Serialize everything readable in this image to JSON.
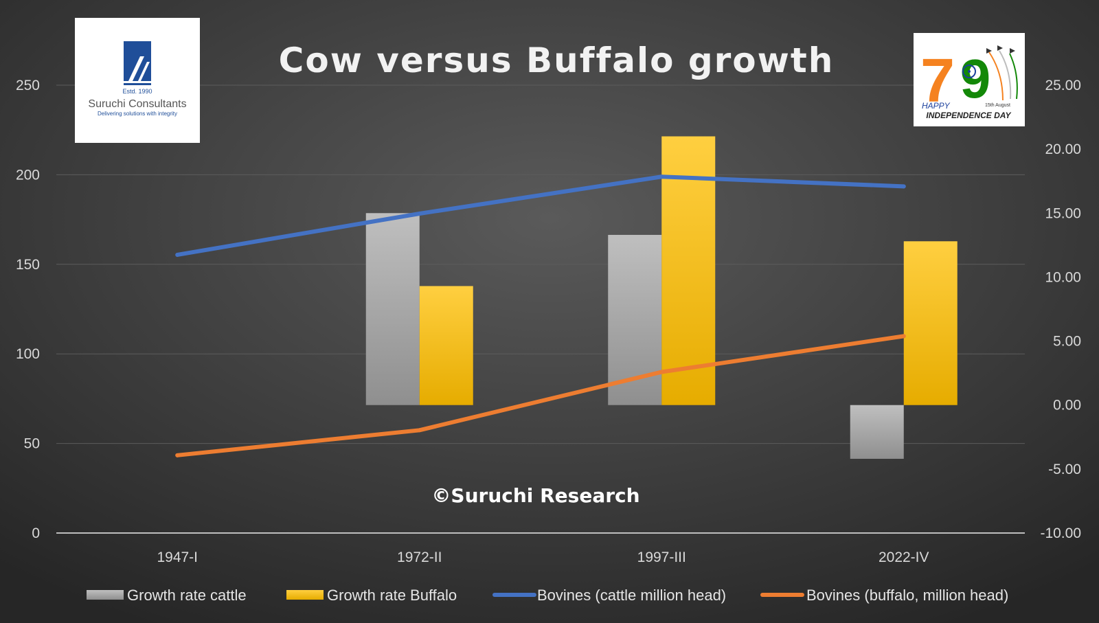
{
  "chart_data": {
    "type": "bar+line",
    "title": "Cow versus Buffalo growth",
    "watermark": "©Suruchi Research",
    "categories": [
      "1947-I",
      "1972-II",
      "1997-III",
      "2022-IV"
    ],
    "left_axis": {
      "min": 0,
      "max": 250,
      "step": 50,
      "ticks": [
        "0",
        "50",
        "100",
        "150",
        "200",
        "250"
      ]
    },
    "right_axis": {
      "min": -10,
      "max": 25,
      "step": 5,
      "ticks": [
        "-10.00",
        "-5.00",
        "0.00",
        "5.00",
        "10.00",
        "15.00",
        "20.00",
        "25.00"
      ]
    },
    "series": [
      {
        "name": "Growth rate cattle",
        "kind": "bar",
        "axis": "right",
        "color": "#a6a6a6",
        "values": [
          null,
          15.0,
          13.3,
          -4.2
        ]
      },
      {
        "name": "Growth rate Buffalo",
        "kind": "bar",
        "axis": "right",
        "color": "#ffc000",
        "values": [
          null,
          9.3,
          21.0,
          12.8
        ]
      },
      {
        "name": "Bovines (cattle million head)",
        "kind": "line",
        "axis": "left",
        "color": "#4472c4",
        "values": [
          155.3,
          178.3,
          198.9,
          193.5
        ]
      },
      {
        "name": "Bovines (buffalo, million head)",
        "kind": "line",
        "axis": "left",
        "color": "#ed7d31",
        "values": [
          43.4,
          57.4,
          89.9,
          109.9
        ]
      }
    ],
    "grid": true,
    "legend_position": "bottom"
  },
  "logos": {
    "suruchi": {
      "estd": "Estd. 1990",
      "name": "Suruchi Consultants",
      "tagline": "Delivering solutions with integrity"
    },
    "independence": {
      "number_seven": "7",
      "number_nine": "9",
      "line1": "HAPPY",
      "date": "15th August",
      "line2": "INDEPENDENCE DAY"
    }
  },
  "colors": {
    "background": "#2a2a2a",
    "grid": "#595959",
    "text": "#d9d9d9"
  }
}
